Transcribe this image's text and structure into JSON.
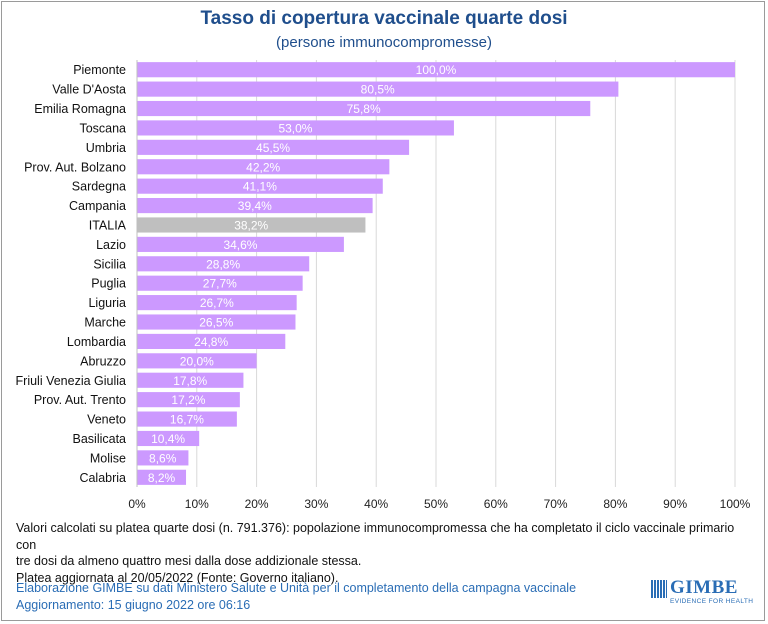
{
  "chart_data": {
    "type": "bar",
    "orientation": "horizontal",
    "title": "Tasso di copertura vaccinale quarte dosi",
    "subtitle": "(persone immunocompromesse)",
    "categories": [
      "Piemonte",
      "Valle D'Aosta",
      "Emilia Romagna",
      "Toscana",
      "Umbria",
      "Prov. Aut. Bolzano",
      "Sardegna",
      "Campania",
      "ITALIA",
      "Lazio",
      "Sicilia",
      "Puglia",
      "Liguria",
      "Marche",
      "Lombardia",
      "Abruzzo",
      "Friuli Venezia Giulia",
      "Prov. Aut. Trento",
      "Veneto",
      "Basilicata",
      "Molise",
      "Calabria"
    ],
    "values": [
      100.0,
      80.5,
      75.8,
      53.0,
      45.5,
      42.2,
      41.1,
      39.4,
      38.2,
      34.6,
      28.8,
      27.7,
      26.7,
      26.5,
      24.8,
      20.0,
      17.8,
      17.2,
      16.7,
      10.4,
      8.6,
      8.2
    ],
    "value_labels": [
      "100,0%",
      "80,5%",
      "75,8%",
      "53,0%",
      "45,5%",
      "42,2%",
      "41,1%",
      "39,4%",
      "38,2%",
      "34,6%",
      "28,8%",
      "27,7%",
      "26,7%",
      "26,5%",
      "24,8%",
      "20,0%",
      "17,8%",
      "17,2%",
      "16,7%",
      "10,4%",
      "8,6%",
      "8,2%"
    ],
    "highlight": "ITALIA",
    "xlim": [
      0,
      100
    ],
    "xticks": [
      0,
      10,
      20,
      30,
      40,
      50,
      60,
      70,
      80,
      90,
      100
    ],
    "xtick_labels": [
      "0%",
      "10%",
      "20%",
      "30%",
      "40%",
      "50%",
      "60%",
      "70%",
      "80%",
      "90%",
      "100%"
    ],
    "grid": true,
    "colors": {
      "bar": "#cc99ff",
      "highlight": "#bfbfbf",
      "grid": "#d9d9d9",
      "label": "#ffffff"
    }
  },
  "note": {
    "line1": "Valori calcolati su platea quarte dosi (n. 791.376): popolazione immunocompromessa che ha completato il ciclo vaccinale primario con",
    "line2": "tre dosi da almeno quattro mesi dalla dose addizionale stessa.",
    "line3": "Platea aggiornata al 20/05/2022 (Fonte: Governo italiano)."
  },
  "footer": {
    "line1": "Elaborazione GIMBE su dati Ministero Salute e Unità per il completamento della campagna vaccinale",
    "line2": "Aggiornamento: 15 giugno 2022 ore 06:16"
  },
  "logo": {
    "name": "GIMBE",
    "tagline": "EVIDENCE FOR HEALTH"
  }
}
